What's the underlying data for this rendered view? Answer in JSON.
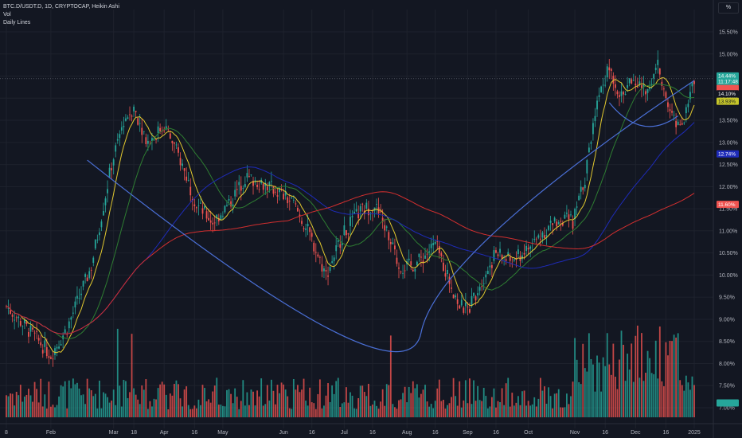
{
  "legend": {
    "symbol": "BTC.D/USDT.D, 1D, CRYPTOCAP, Heikin Ashi",
    "vol": "Vol",
    "daily_lines": "Daily Lines"
  },
  "scale_button": "%",
  "colors": {
    "background": "#131722",
    "grid": "#1e222d",
    "up": "#26a69a",
    "down": "#ef5350",
    "ma_fast": "#e2c92f",
    "ma_mid": "#2e7d32",
    "ma_slow": "#1e2bb8",
    "ma_long": "#d32f2f",
    "curve": "#4a6fd6"
  },
  "price_tags": [
    {
      "text": "14.44%",
      "sub": "11:17:48",
      "value": 14.44,
      "color": "#26a69a"
    },
    {
      "text": "",
      "value": 14.22,
      "color": "#ef5350"
    },
    {
      "text": "14.10%",
      "value": 14.1,
      "color": "#131722"
    },
    {
      "text": "13.93%",
      "value": 13.93,
      "color": "#c6c62a"
    },
    {
      "text": "12.74%",
      "value": 12.74,
      "color": "#1e2bb8"
    },
    {
      "text": "11.60%",
      "value": 11.6,
      "color": "#ef5350"
    },
    {
      "text": "",
      "value": 7.1,
      "color": "#26a69a",
      "volume": true
    }
  ],
  "chart_data": {
    "type": "candlestick",
    "title": "BTC.D/USDT.D, 1D, CRYPTOCAP, Heikin Ashi",
    "y_unit": "%",
    "ylim": [
      7.0,
      16.0
    ],
    "y_ticks": [
      "15.50%",
      "15.00%",
      "14.50%",
      "14.00%",
      "13.50%",
      "13.00%",
      "12.50%",
      "12.00%",
      "11.50%",
      "11.00%",
      "10.50%",
      "10.00%",
      "9.50%",
      "9.00%",
      "8.50%",
      "8.00%",
      "7.50%",
      "7.00%"
    ],
    "x_ticks": [
      "8",
      "Feb",
      "Mar",
      "18",
      "Apr",
      "16",
      "May",
      "Jun",
      "16",
      "Jul",
      "16",
      "Aug",
      "16",
      "Sep",
      "16",
      "Oct",
      "Nov",
      "16",
      "Dec",
      "16",
      "2025"
    ],
    "price_path": [
      {
        "t": 0,
        "v": 9.3
      },
      {
        "t": 14,
        "v": 8.6
      },
      {
        "t": 22,
        "v": 8.2
      },
      {
        "t": 30,
        "v": 8.8
      },
      {
        "t": 42,
        "v": 10.2
      },
      {
        "t": 52,
        "v": 12.5
      },
      {
        "t": 58,
        "v": 13.5
      },
      {
        "t": 63,
        "v": 13.8
      },
      {
        "t": 70,
        "v": 13.0
      },
      {
        "t": 78,
        "v": 13.4
      },
      {
        "t": 86,
        "v": 12.6
      },
      {
        "t": 94,
        "v": 11.6
      },
      {
        "t": 102,
        "v": 11.2
      },
      {
        "t": 110,
        "v": 11.6
      },
      {
        "t": 118,
        "v": 12.2
      },
      {
        "t": 126,
        "v": 12.1
      },
      {
        "t": 134,
        "v": 11.9
      },
      {
        "t": 142,
        "v": 11.6
      },
      {
        "t": 150,
        "v": 10.9
      },
      {
        "t": 158,
        "v": 10.0
      },
      {
        "t": 166,
        "v": 10.9
      },
      {
        "t": 174,
        "v": 11.4
      },
      {
        "t": 182,
        "v": 11.6
      },
      {
        "t": 188,
        "v": 11.0
      },
      {
        "t": 194,
        "v": 10.2
      },
      {
        "t": 200,
        "v": 10.2
      },
      {
        "t": 206,
        "v": 10.4
      },
      {
        "t": 212,
        "v": 10.7
      },
      {
        "t": 218,
        "v": 10.0
      },
      {
        "t": 224,
        "v": 9.3
      },
      {
        "t": 228,
        "v": 9.2
      },
      {
        "t": 234,
        "v": 9.8
      },
      {
        "t": 242,
        "v": 10.5
      },
      {
        "t": 250,
        "v": 10.3
      },
      {
        "t": 258,
        "v": 10.6
      },
      {
        "t": 266,
        "v": 11.0
      },
      {
        "t": 274,
        "v": 11.3
      },
      {
        "t": 280,
        "v": 11.2
      },
      {
        "t": 286,
        "v": 12.2
      },
      {
        "t": 292,
        "v": 14.0
      },
      {
        "t": 298,
        "v": 14.7
      },
      {
        "t": 304,
        "v": 14.0
      },
      {
        "t": 310,
        "v": 14.5
      },
      {
        "t": 316,
        "v": 14.1
      },
      {
        "t": 322,
        "v": 14.8
      },
      {
        "t": 328,
        "v": 13.6
      },
      {
        "t": 334,
        "v": 13.4
      },
      {
        "t": 340,
        "v": 14.4
      }
    ],
    "volume_ylim": [
      0,
      1
    ],
    "moving_averages": [
      "ma_fast",
      "ma_mid",
      "ma_slow",
      "ma_long"
    ],
    "rounding_bottom_curve": true
  }
}
